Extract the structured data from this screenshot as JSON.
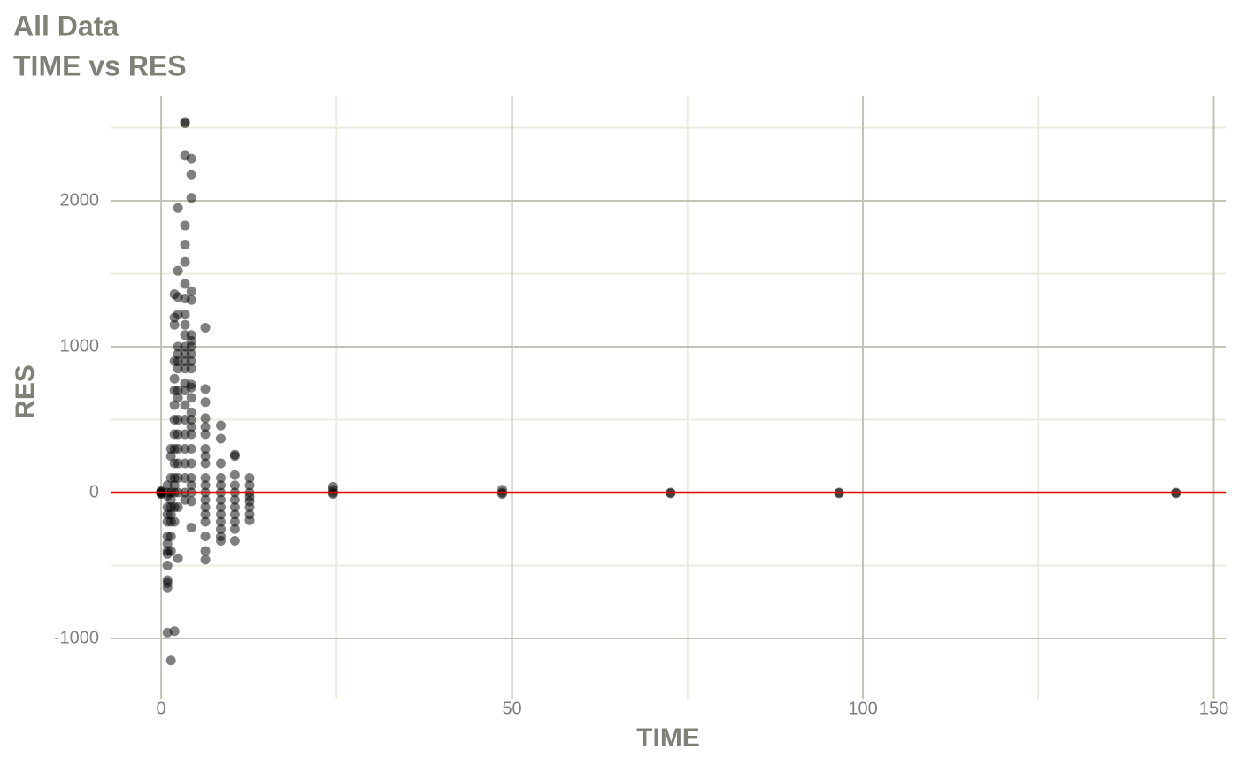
{
  "chart_data": {
    "type": "scatter",
    "title": "All Data",
    "subtitle": "TIME vs RES",
    "x_label": "TIME",
    "y_label": "RES",
    "xlim": [
      -7.2,
      151.7
    ],
    "ylim": [
      -1412,
      2721
    ],
    "xticks": [
      0,
      50,
      100,
      150
    ],
    "yticks": [
      -1000,
      0,
      1000,
      2000
    ],
    "minor_xticks": [
      25,
      75,
      125
    ],
    "minor_yticks": [
      -500,
      500,
      1500,
      2500
    ],
    "grid": true,
    "hline": 0,
    "hline_color": "#e00000",
    "series": [
      {
        "color": "#000000",
        "opacity": 0.5,
        "x": [
          0,
          0,
          0,
          0,
          0,
          0.9,
          0.9,
          0.9,
          0.9,
          0.9,
          0.9,
          0.9,
          0.9,
          0.9,
          0.9,
          0.9,
          0.9,
          0.9,
          0.9,
          0.9,
          1.4,
          1.4,
          1.4,
          1.4,
          1.4,
          1.4,
          1.4,
          1.4,
          1.4,
          1.4,
          1.4,
          1.9,
          1.9,
          1.9,
          1.9,
          1.9,
          1.9,
          1.9,
          1.9,
          1.9,
          1.9,
          1.9,
          1.9,
          1.9,
          1.9,
          1.9,
          1.9,
          1.9,
          2.4,
          2.4,
          2.4,
          2.4,
          2.4,
          2.4,
          2.4,
          2.4,
          2.4,
          2.4,
          2.4,
          2.4,
          2.4,
          2.4,
          2.4,
          2.4,
          2.4,
          2.4,
          3.4,
          3.4,
          3.4,
          3.4,
          3.4,
          3.4,
          3.4,
          3.4,
          3.4,
          3.4,
          3.4,
          3.4,
          3.4,
          3.4,
          3.4,
          3.4,
          3.4,
          3.4,
          3.4,
          3.4,
          3.4,
          3.4,
          3.4,
          3.4,
          3.4,
          4.3,
          4.3,
          4.3,
          4.3,
          4.3,
          4.3,
          4.3,
          4.3,
          4.3,
          4.3,
          4.3,
          4.3,
          4.3,
          4.3,
          4.3,
          4.3,
          4.3,
          4.3,
          4.3,
          4.3,
          4.3,
          4.3,
          4.3,
          4.3,
          4.3,
          6.3,
          6.3,
          6.3,
          6.3,
          6.3,
          6.3,
          6.3,
          6.3,
          6.3,
          6.3,
          6.3,
          6.3,
          6.3,
          6.3,
          6.3,
          6.3,
          6.3,
          6.3,
          6.3,
          8.5,
          8.5,
          8.5,
          8.5,
          8.5,
          8.5,
          8.5,
          8.5,
          8.5,
          8.5,
          8.5,
          8.5,
          8.5,
          10.5,
          10.5,
          10.5,
          10.5,
          10.5,
          10.5,
          10.5,
          10.5,
          10.5,
          10.5,
          10.5,
          12.6,
          12.6,
          12.6,
          12.6,
          12.6,
          12.6,
          12.6,
          12.6,
          24.5,
          24.5,
          24.5,
          24.5,
          48.6,
          48.6,
          48.6,
          72.6,
          72.6,
          96.6,
          96.6,
          144.6,
          144.6
        ],
        "values": [
          0,
          10,
          -10,
          5,
          -5,
          -20,
          -100,
          -200,
          -300,
          -350,
          -400,
          -420,
          -500,
          -600,
          -620,
          -650,
          -960,
          50,
          0,
          -150,
          300,
          250,
          100,
          0,
          -50,
          -100,
          -200,
          -300,
          -400,
          -1150,
          -150,
          1360,
          1200,
          1150,
          900,
          780,
          700,
          600,
          500,
          400,
          300,
          200,
          100,
          0,
          -100,
          -200,
          -950,
          50,
          1950,
          1520,
          1340,
          1220,
          1000,
          950,
          900,
          850,
          700,
          650,
          500,
          400,
          300,
          200,
          100,
          0,
          -100,
          -450,
          2540,
          2530,
          2310,
          1830,
          1700,
          1580,
          1430,
          1330,
          1220,
          1150,
          1080,
          1000,
          950,
          900,
          850,
          750,
          700,
          600,
          500,
          400,
          300,
          200,
          100,
          0,
          -50,
          2290,
          2180,
          2020,
          1380,
          1320,
          1080,
          1040,
          1000,
          950,
          900,
          850,
          740,
          720,
          650,
          550,
          500,
          450,
          400,
          300,
          200,
          100,
          50,
          0,
          -60,
          -240,
          1130,
          710,
          620,
          510,
          450,
          400,
          300,
          250,
          200,
          100,
          50,
          0,
          -50,
          -100,
          -150,
          -200,
          -300,
          -400,
          -460,
          460,
          370,
          200,
          100,
          50,
          0,
          -50,
          -100,
          -150,
          -200,
          -250,
          -300,
          -330,
          260,
          250,
          120,
          50,
          0,
          -50,
          -100,
          -150,
          -200,
          -250,
          -330,
          100,
          50,
          0,
          -30,
          -60,
          -100,
          -150,
          -190,
          40,
          20,
          0,
          -10,
          20,
          0,
          -10,
          0,
          -5,
          0,
          -5,
          0,
          -5
        ]
      }
    ]
  }
}
